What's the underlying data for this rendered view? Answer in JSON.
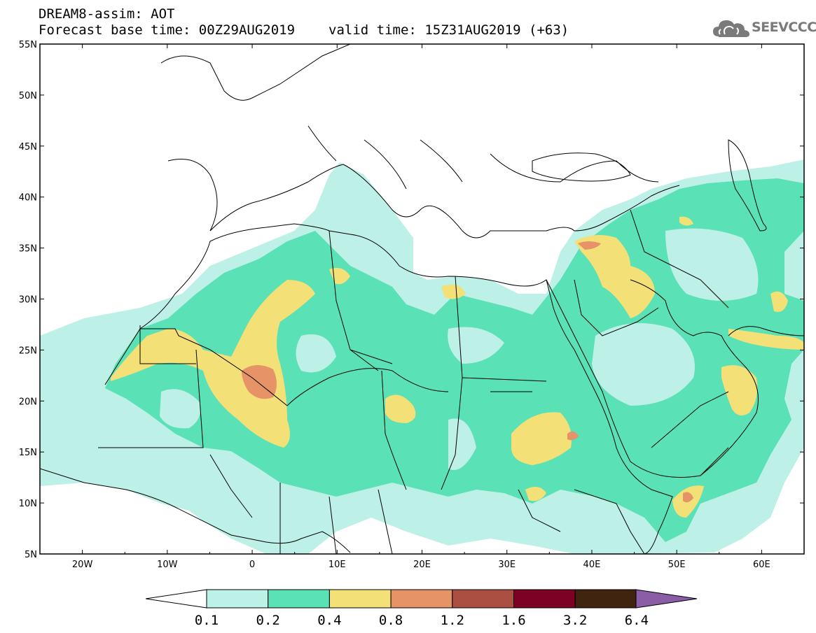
{
  "header": {
    "title": "DREAM8-assim: AOT",
    "base_time": "Forecast base time: 00Z29AUG2019",
    "valid_time": "valid time: 15Z31AUG2019 (+63)"
  },
  "logo": {
    "text": "SEEVCCC",
    "icon": "cloud-icon"
  },
  "map": {
    "lat_ticks": [
      "55N",
      "50N",
      "45N",
      "40N",
      "35N",
      "30N",
      "25N",
      "20N",
      "15N",
      "10N",
      "5N"
    ],
    "lon_ticks": [
      "20W",
      "10W",
      "0",
      "10E",
      "20E",
      "30E",
      "40E",
      "50E",
      "60E"
    ],
    "lon_range": [
      -25,
      65
    ],
    "lat_range": [
      5,
      55
    ]
  },
  "colorbar": {
    "labels": [
      "0.1",
      "0.2",
      "0.4",
      "0.8",
      "1.2",
      "1.6",
      "3.2",
      "6.4"
    ],
    "colors": [
      "#bdf0e6",
      "#5ae1b6",
      "#f3e076",
      "#e59367",
      "#ac4f43",
      "#7d0025",
      "#40240f",
      "#8b5da6"
    ],
    "under_color": "#ffffff"
  },
  "palette": {
    "low": "#bdf0e6",
    "mid": "#5ae1b6",
    "high": "#f3e076",
    "higher": "#e59367"
  }
}
